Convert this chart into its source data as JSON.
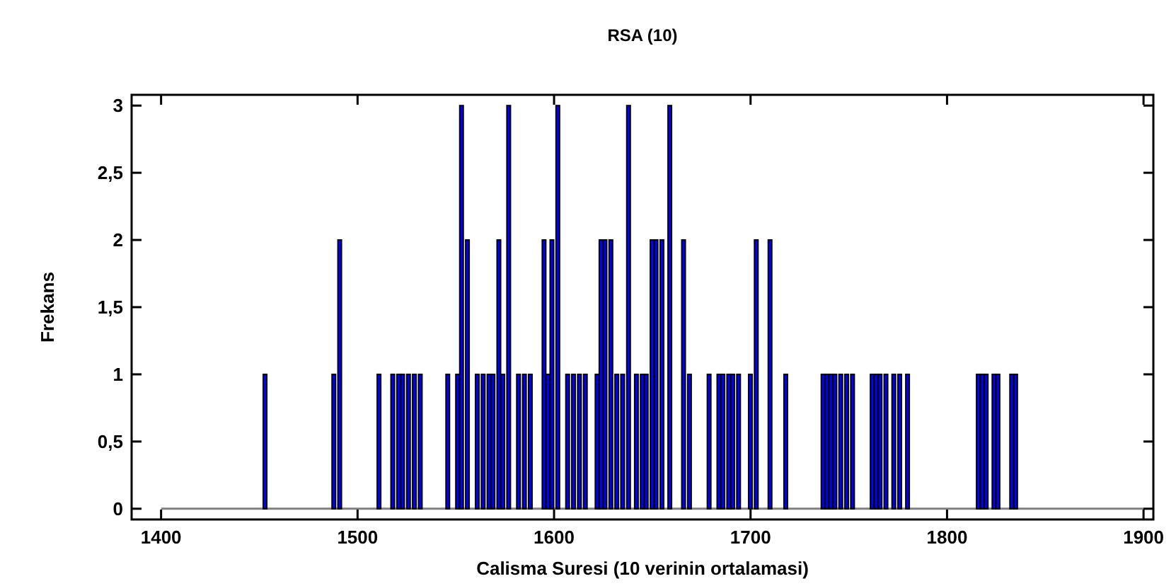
{
  "chart_data": {
    "type": "bar",
    "title": "RSA (10)",
    "xlabel": "Calisma Suresi (10 verinin ortalamasi)",
    "ylabel": "Frekans",
    "x": [
      1452,
      1487,
      1490,
      1510,
      1517,
      1520,
      1522,
      1525,
      1528,
      1531,
      1545,
      1550,
      1552,
      1555,
      1560,
      1563,
      1566,
      1568,
      1571,
      1573,
      1576,
      1581,
      1584,
      1587,
      1594,
      1596,
      1598,
      1601,
      1606,
      1609,
      1612,
      1615,
      1621,
      1623,
      1625,
      1628,
      1631,
      1634,
      1637,
      1641,
      1644,
      1646,
      1649,
      1651,
      1654,
      1658,
      1665,
      1668,
      1678,
      1683,
      1685,
      1688,
      1690,
      1693,
      1699,
      1702,
      1709,
      1717,
      1736,
      1738,
      1740,
      1742,
      1745,
      1748,
      1751,
      1761,
      1763,
      1765,
      1768,
      1772,
      1775,
      1779,
      1815,
      1817,
      1819,
      1823,
      1825,
      1832,
      1834
    ],
    "values": [
      1,
      1,
      2,
      1,
      1,
      1,
      1,
      1,
      1,
      1,
      1,
      1,
      3,
      2,
      1,
      1,
      1,
      1,
      2,
      1,
      3,
      1,
      1,
      1,
      2,
      1,
      2,
      3,
      1,
      1,
      1,
      1,
      1,
      2,
      2,
      2,
      1,
      1,
      3,
      1,
      1,
      1,
      2,
      2,
      2,
      3,
      2,
      1,
      1,
      1,
      1,
      1,
      1,
      1,
      1,
      2,
      2,
      1,
      1,
      1,
      1,
      1,
      1,
      1,
      1,
      1,
      1,
      1,
      1,
      1,
      1,
      1,
      1,
      1,
      1,
      1,
      1,
      1,
      1
    ],
    "color": "#0000ff",
    "xlim": [
      1385,
      1905
    ],
    "xticks": [
      1400,
      1500,
      1600,
      1700,
      1800,
      1900
    ],
    "ylim": [
      -0.08,
      3.08
    ],
    "yticks": [
      0,
      {
        "value": 0.5,
        "label": "0,5"
      },
      1,
      {
        "value": 1.5,
        "label": "1,5"
      },
      2,
      {
        "value": 2.5,
        "label": "2,5"
      },
      3
    ],
    "ref_lines": [
      {
        "axis": "y",
        "value": 0,
        "color": "#808080"
      }
    ],
    "grid": false
  }
}
